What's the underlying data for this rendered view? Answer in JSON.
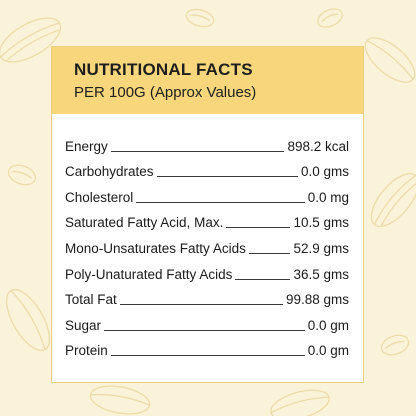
{
  "header": {
    "title": "NUTRITIONAL FACTS",
    "subtitle": "PER 100G (Approx Values)"
  },
  "nutrients": [
    {
      "label": "Energy",
      "value": "898.2 kcal"
    },
    {
      "label": "Carbohydrates",
      "value": "0.0 gms"
    },
    {
      "label": "Cholesterol",
      "value": "0.0 mg"
    },
    {
      "label": "Saturated Fatty Acid, Max.",
      "value": "10.5 gms"
    },
    {
      "label": "Mono-Unsaturates Fatty Acids",
      "value": "52.9 gms"
    },
    {
      "label": "Poly-Unaturated Fatty Acids",
      "value": "36.5 gms"
    },
    {
      "label": "Total Fat",
      "value": "99.88 gms"
    },
    {
      "label": "Sugar",
      "value": "0.0 gm"
    },
    {
      "label": "Protein",
      "value": "0.0 gm"
    }
  ],
  "colors": {
    "background": "#fbf3d9",
    "header": "#f8d77c",
    "card": "#ffffff",
    "pattern": "#ecdcaa"
  },
  "decoration": {
    "background_icons": [
      "cocoa-pod-icon",
      "cocoa-bean-icon"
    ]
  }
}
